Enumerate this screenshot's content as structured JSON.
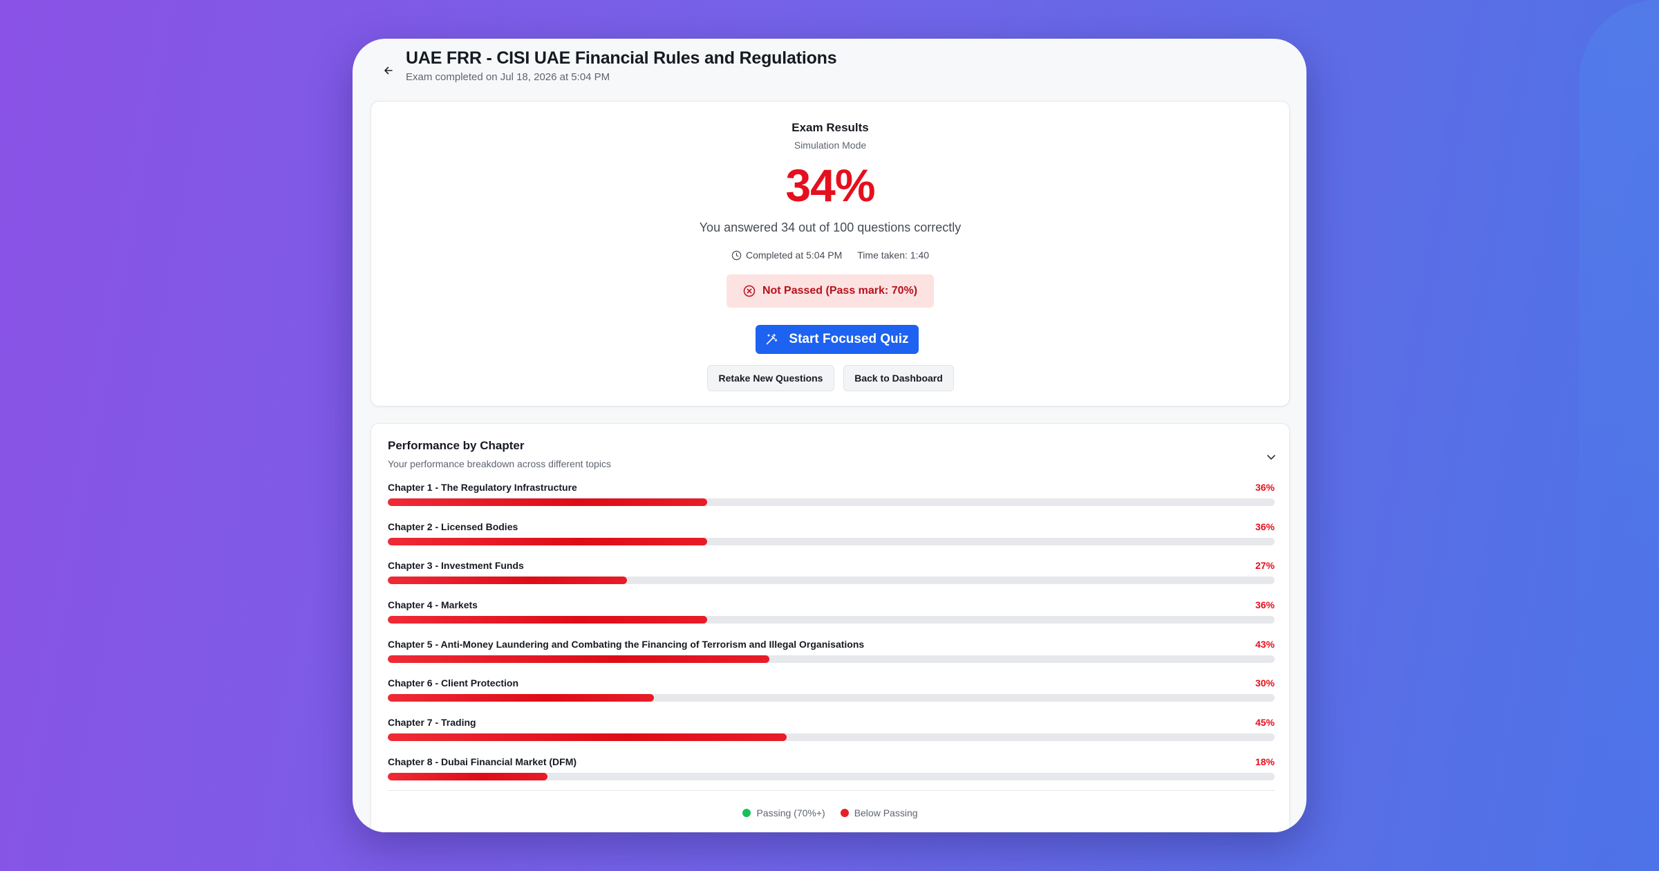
{
  "header": {
    "title": "UAE FRR - CISI UAE Financial Rules and Regulations",
    "subtitle": "Exam completed on Jul 18, 2026 at 5:04 PM",
    "back_icon": "arrow-left-icon"
  },
  "results": {
    "title": "Exam Results",
    "mode": "Simulation Mode",
    "score": "34%",
    "answered": "You answered 34 out of 100 questions correctly",
    "completed": "Completed at 5:04 PM",
    "time_taken": "Time taken: 1:40",
    "status": "Not Passed (Pass mark: 70%)",
    "start_quiz": "Start Focused Quiz",
    "retake": "Retake New Questions",
    "back_dashboard": "Back to Dashboard",
    "score_color": "#e5101d"
  },
  "performance": {
    "title": "Performance by Chapter",
    "subtitle": "Your performance breakdown across different topics",
    "chapters": [
      {
        "label": "Chapter 1 - The Regulatory Infrastructure",
        "pct": "36%",
        "value": 36
      },
      {
        "label": "Chapter 2 - Licensed Bodies",
        "pct": "36%",
        "value": 36
      },
      {
        "label": "Chapter 3 - Investment Funds",
        "pct": "27%",
        "value": 27
      },
      {
        "label": "Chapter 4 - Markets",
        "pct": "36%",
        "value": 36
      },
      {
        "label": "Chapter 5 - Anti-Money Laundering and Combating the Financing of Terrorism and Illegal Organisations",
        "pct": "43%",
        "value": 43
      },
      {
        "label": "Chapter 6 - Client Protection",
        "pct": "30%",
        "value": 30
      },
      {
        "label": "Chapter 7 - Trading",
        "pct": "45%",
        "value": 45
      },
      {
        "label": "Chapter 8 - Dubai Financial Market (DFM)",
        "pct": "18%",
        "value": 18
      }
    ],
    "legend": {
      "passing": "Passing (70%+)",
      "below": "Below Passing",
      "passing_color": "#16c05a",
      "below_color": "#e5202b"
    }
  }
}
